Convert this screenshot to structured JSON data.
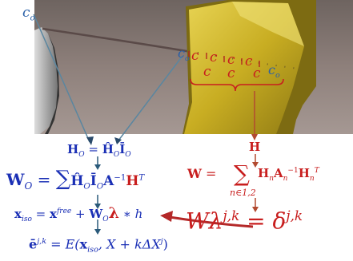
{
  "scene": {
    "labels": {
      "c0_left": "c",
      "c0_left_sub": "o",
      "c0_mid": "c",
      "c0_mid_sub": "o",
      "c0_right": "c",
      "c0_right_sub": "o",
      "contact_c": "c"
    }
  },
  "equations": {
    "h_o": {
      "lhs": "H",
      "lhs_sub": "O",
      "eq": " = ",
      "rhs1": "Ĥ",
      "rhs1_sub": "O",
      "rhs2": "Ī",
      "rhs2_sub": "O"
    },
    "w_o": {
      "lhs": "W",
      "lhs_sub": "O",
      "eq": " = ",
      "sum": "∑",
      "h": "Ĥ",
      "h_sub": "O",
      "i": "Ī",
      "i_sub": "O",
      "a": "A",
      "a_sup": "−1",
      "h2": "H",
      "h2_sup": "T"
    },
    "x_iso": {
      "lhs": "x",
      "lhs_sub": "iso",
      "eq": " = ",
      "x": "x",
      "x_sup": "free",
      "plus": " + ",
      "w": "W",
      "w_sub": "O",
      "lambda": "λ",
      "rest": " ∗ h"
    },
    "e_bar": {
      "lhs": "ē",
      "lhs_sup": "j,k",
      "eq": " = E(",
      "x": "x",
      "x_sub": "iso",
      "rest": ", X + kΔX",
      "rest_sup": "j",
      "close": ")"
    },
    "h_red": {
      "label": "H"
    },
    "w_red": {
      "lhs": "W",
      "eq": " = ",
      "sum": "∑",
      "sum_sub": "n∈1,2",
      "h": "H",
      "h_sub": "n",
      "a": "A",
      "a_sub": "n",
      "a_sup": "−1",
      "h2": "H",
      "h2_sub": "n",
      "h2_sup": "T"
    },
    "w_lambda": {
      "w": "W",
      "lambda": "λ",
      "sup": "j,k",
      "eq": " = ",
      "delta": "δ",
      "delta_sup": "j,k"
    }
  },
  "colors": {
    "blue": "#1a2fb5",
    "red": "#c81e1e",
    "block": "#d8c028",
    "sky": "#8c7a76"
  }
}
